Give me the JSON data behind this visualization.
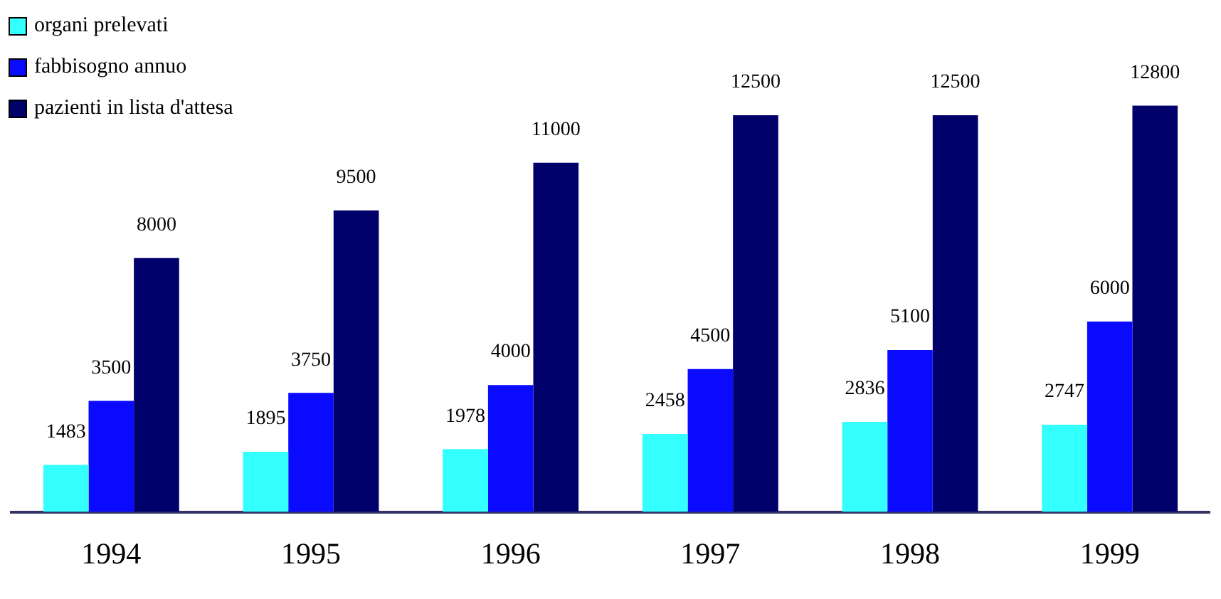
{
  "chart_data": {
    "type": "bar",
    "categories": [
      "1994",
      "1995",
      "1996",
      "1997",
      "1998",
      "1999"
    ],
    "series": [
      {
        "name": "organi prelevati",
        "color": "#33ffff",
        "values": [
          1483,
          1895,
          1978,
          2458,
          2836,
          2747
        ]
      },
      {
        "name": "fabbisogno annuo",
        "color": "#0a0aff",
        "values": [
          3500,
          3750,
          4000,
          4500,
          5100,
          6000
        ]
      },
      {
        "name": "pazienti in lista d'attesa",
        "color": "#00006b",
        "values": [
          8000,
          9500,
          11000,
          12500,
          12500,
          12800
        ]
      }
    ],
    "tick_labels": "x",
    "data_labels": true,
    "legend": "top left",
    "grid": false
  }
}
